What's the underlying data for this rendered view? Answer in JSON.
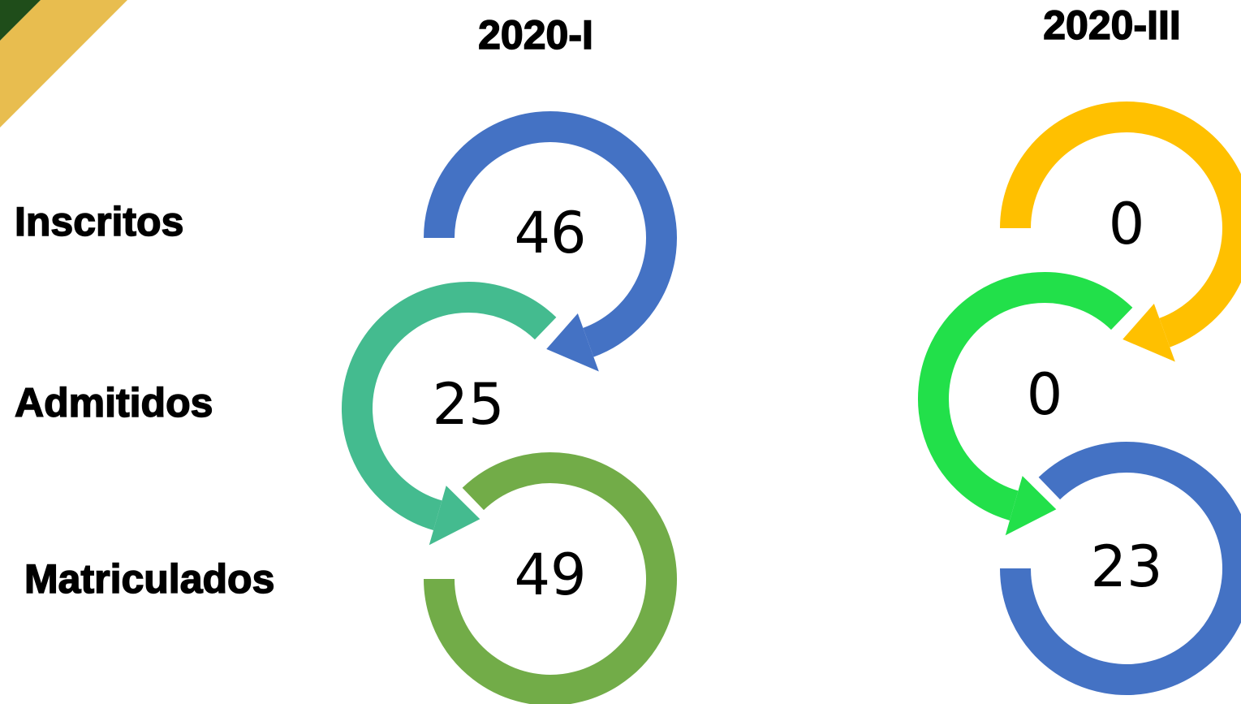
{
  "rows": [
    "Inscritos",
    "Admitidos",
    "Matriculados"
  ],
  "columns": [
    {
      "title": "2020-I",
      "values": [
        46,
        25,
        49
      ]
    },
    {
      "title": "2020-III",
      "values": [
        0,
        0,
        23
      ]
    }
  ]
}
